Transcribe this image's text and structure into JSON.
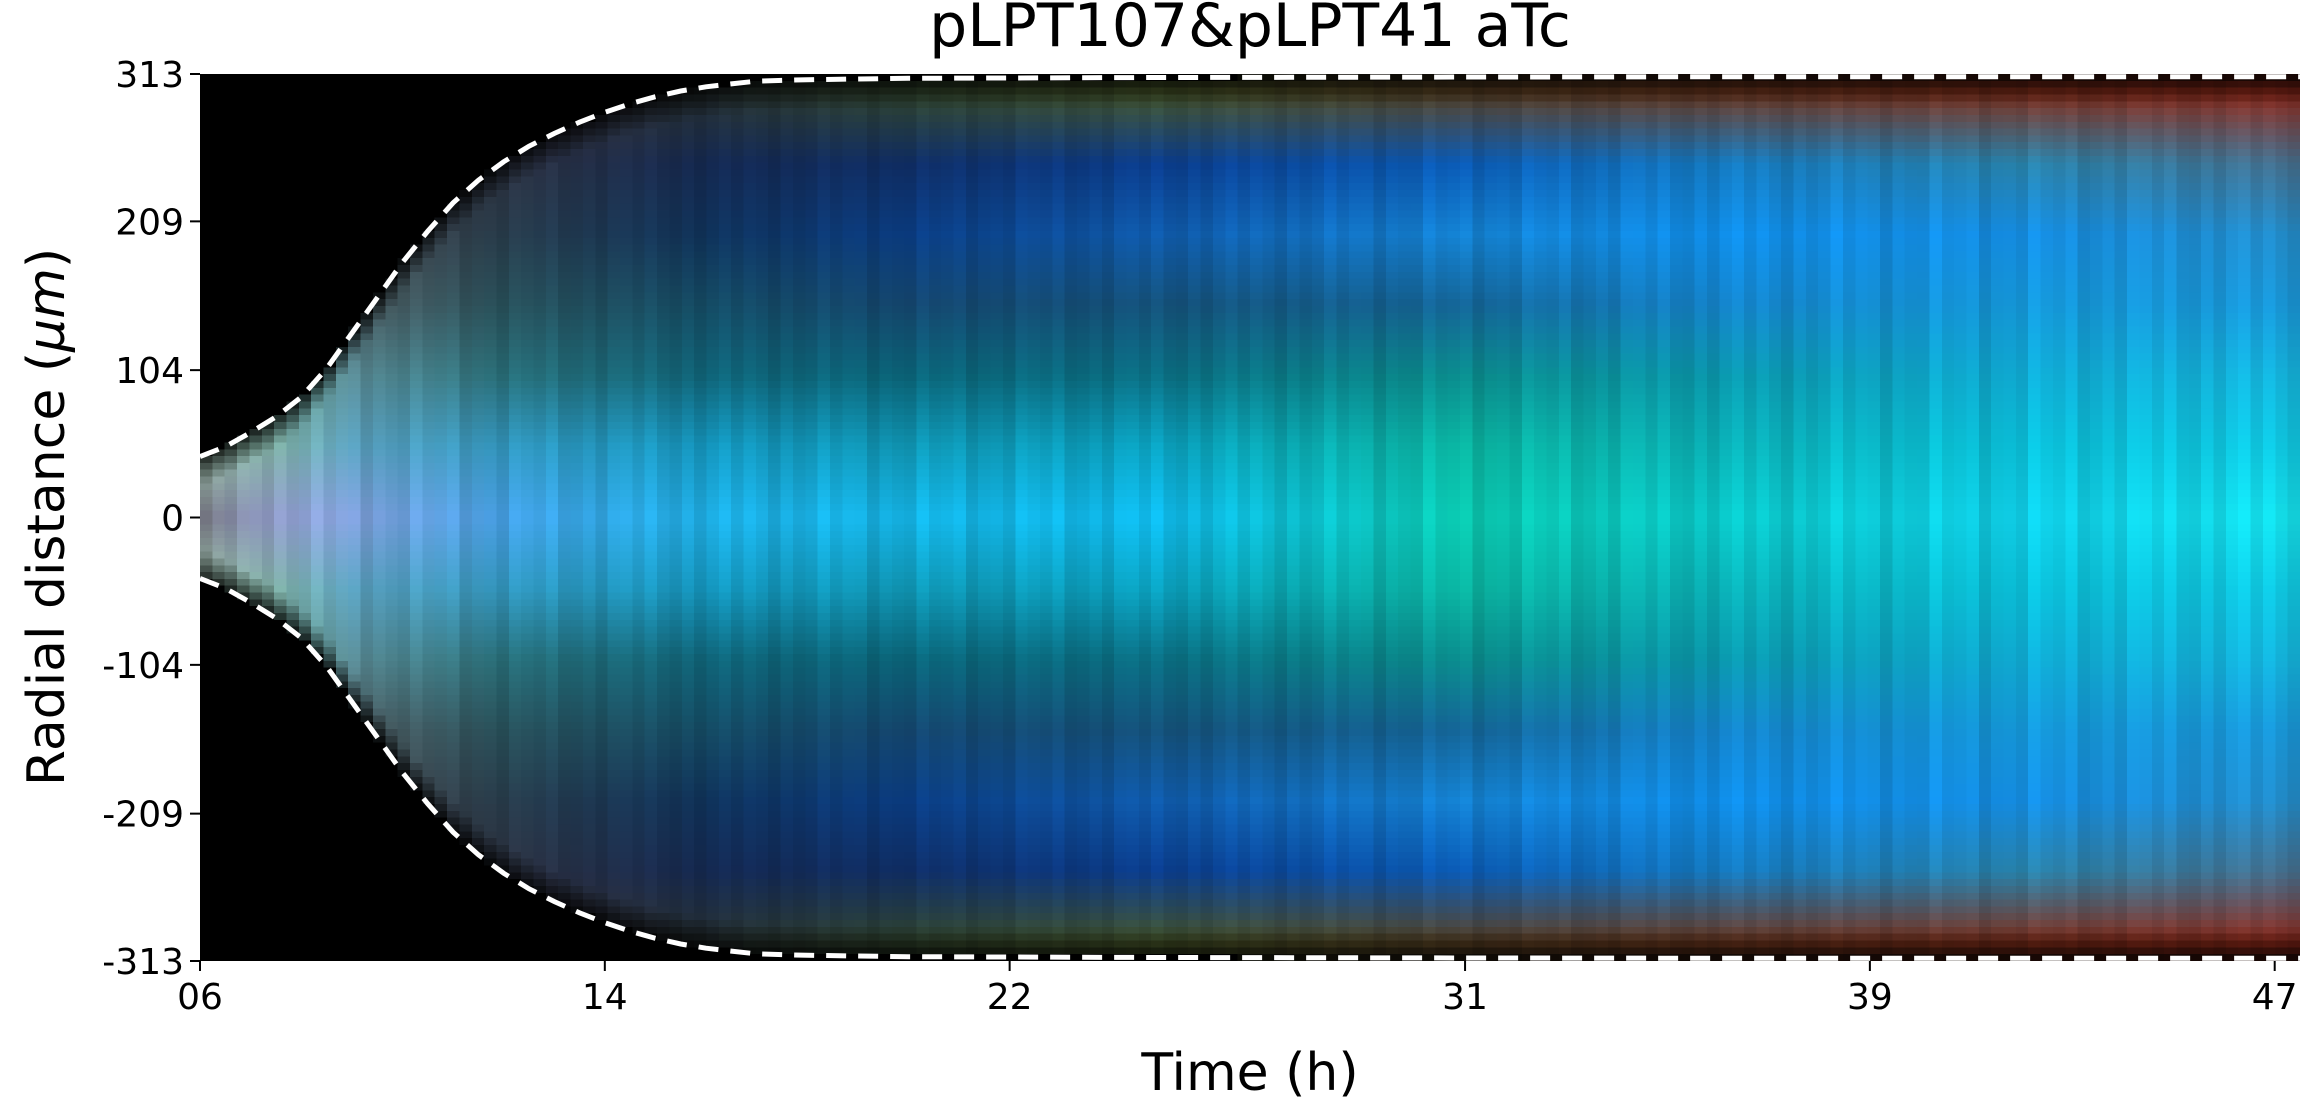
{
  "chart_data": {
    "type": "heatmap",
    "title": "pLPT107&pLPT41 aTc",
    "xlabel": "Time (h)",
    "ylabel_prefix": "Radial distance (",
    "ylabel_unit": "μm",
    "ylabel_suffix": ")",
    "xlim": [
      6,
      47.5
    ],
    "ylim": [
      -313,
      313
    ],
    "x_ticks": [
      {
        "value": 6,
        "label": "06"
      },
      {
        "value": 14,
        "label": "14"
      },
      {
        "value": 22,
        "label": "22"
      },
      {
        "value": 31,
        "label": "31"
      },
      {
        "value": 39,
        "label": "39"
      },
      {
        "value": 47,
        "label": "47"
      }
    ],
    "y_ticks": [
      {
        "value": 313,
        "label": "313"
      },
      {
        "value": 209,
        "label": "209"
      },
      {
        "value": 104,
        "label": "104"
      },
      {
        "value": 0,
        "label": "0"
      },
      {
        "value": -104,
        "label": "-104"
      },
      {
        "value": -209,
        "label": "-209"
      },
      {
        "value": -313,
        "label": "-313"
      }
    ],
    "grid": false,
    "colormap": "RGB composite (red, green, blue channels)",
    "background_color": "#000000",
    "boundary_line": {
      "style": "dashed",
      "color": "#ffffff",
      "points": [
        [
          6.0,
          43
        ],
        [
          6.5,
          50
        ],
        [
          7.0,
          60
        ],
        [
          7.5,
          71
        ],
        [
          8.0,
          85
        ],
        [
          8.5,
          105
        ],
        [
          9.0,
          130
        ],
        [
          9.5,
          155
        ],
        [
          10.0,
          180
        ],
        [
          10.5,
          202
        ],
        [
          11.0,
          222
        ],
        [
          11.5,
          238
        ],
        [
          12.0,
          251
        ],
        [
          12.5,
          262
        ],
        [
          13.0,
          271
        ],
        [
          13.5,
          279
        ],
        [
          14.0,
          286
        ],
        [
          14.5,
          292
        ],
        [
          15.0,
          297
        ],
        [
          15.5,
          301
        ],
        [
          16.0,
          304
        ],
        [
          16.5,
          306
        ],
        [
          17.0,
          308
        ],
        [
          18.0,
          309
        ],
        [
          20.0,
          310
        ],
        [
          25.0,
          310.5
        ],
        [
          30.0,
          310.8
        ],
        [
          35.0,
          311
        ],
        [
          40.0,
          311
        ],
        [
          45.0,
          311
        ],
        [
          47.5,
          311
        ]
      ]
    },
    "channel_profiles": [
      {
        "t": 6.0,
        "c": [
          [
            110,
            110,
            120
          ],
          [
            150,
            185,
            160
          ],
          [
            180,
            200,
            200
          ],
          [
            0,
            0,
            0
          ],
          [
            0,
            0,
            0
          ],
          [
            0,
            0,
            0
          ],
          [
            0,
            0,
            0
          ]
        ]
      },
      {
        "t": 7.5,
        "c": [
          [
            150,
            160,
            210
          ],
          [
            130,
            180,
            170
          ],
          [
            100,
            150,
            130
          ],
          [
            85,
            95,
            95
          ],
          [
            40,
            40,
            40
          ],
          [
            0,
            0,
            0
          ],
          [
            0,
            0,
            0
          ]
        ]
      },
      {
        "t": 9.0,
        "c": [
          [
            130,
            160,
            220
          ],
          [
            90,
            160,
            190
          ],
          [
            90,
            140,
            150
          ],
          [
            80,
            95,
            100
          ],
          [
            70,
            70,
            75
          ],
          [
            50,
            45,
            50
          ],
          [
            20,
            20,
            20
          ]
        ]
      },
      {
        "t": 12.0,
        "c": [
          [
            70,
            160,
            230
          ],
          [
            50,
            150,
            190
          ],
          [
            40,
            110,
            120
          ],
          [
            40,
            80,
            90
          ],
          [
            40,
            60,
            75
          ],
          [
            45,
            50,
            65
          ],
          [
            55,
            45,
            50
          ]
        ]
      },
      {
        "t": 16.0,
        "c": [
          [
            30,
            175,
            230
          ],
          [
            20,
            150,
            190
          ],
          [
            15,
            100,
            120
          ],
          [
            20,
            75,
            100
          ],
          [
            15,
            50,
            90
          ],
          [
            20,
            40,
            80
          ],
          [
            40,
            50,
            50
          ]
        ]
      },
      {
        "t": 20.0,
        "c": [
          [
            20,
            180,
            230
          ],
          [
            15,
            150,
            180
          ],
          [
            10,
            100,
            120
          ],
          [
            20,
            70,
            110
          ],
          [
            10,
            60,
            130
          ],
          [
            15,
            45,
            100
          ],
          [
            50,
            70,
            45
          ]
        ]
      },
      {
        "t": 25.0,
        "c": [
          [
            15,
            185,
            235
          ],
          [
            10,
            160,
            190
          ],
          [
            10,
            110,
            130
          ],
          [
            20,
            80,
            120
          ],
          [
            15,
            90,
            170
          ],
          [
            10,
            60,
            140
          ],
          [
            70,
            85,
            40
          ]
        ]
      },
      {
        "t": 31.0,
        "c": [
          [
            10,
            200,
            175
          ],
          [
            10,
            180,
            160
          ],
          [
            10,
            140,
            140
          ],
          [
            20,
            100,
            150
          ],
          [
            20,
            130,
            210
          ],
          [
            10,
            90,
            180
          ],
          [
            90,
            65,
            35
          ]
        ]
      },
      {
        "t": 36.0,
        "c": [
          [
            10,
            200,
            200
          ],
          [
            10,
            175,
            180
          ],
          [
            10,
            150,
            170
          ],
          [
            20,
            130,
            200
          ],
          [
            15,
            140,
            230
          ],
          [
            20,
            120,
            190
          ],
          [
            110,
            55,
            30
          ]
        ]
      },
      {
        "t": 42.0,
        "c": [
          [
            15,
            205,
            230
          ],
          [
            10,
            190,
            215
          ],
          [
            15,
            170,
            210
          ],
          [
            20,
            150,
            215
          ],
          [
            20,
            140,
            225
          ],
          [
            40,
            130,
            170
          ],
          [
            130,
            45,
            25
          ]
        ]
      },
      {
        "t": 47.5,
        "c": [
          [
            20,
            225,
            235
          ],
          [
            15,
            200,
            225
          ],
          [
            20,
            180,
            220
          ],
          [
            25,
            150,
            215
          ],
          [
            35,
            140,
            200
          ],
          [
            70,
            110,
            140
          ],
          [
            145,
            40,
            25
          ]
        ]
      }
    ],
    "profile_radial_positions": [
      0,
      50,
      100,
      150,
      200,
      250,
      300
    ]
  }
}
